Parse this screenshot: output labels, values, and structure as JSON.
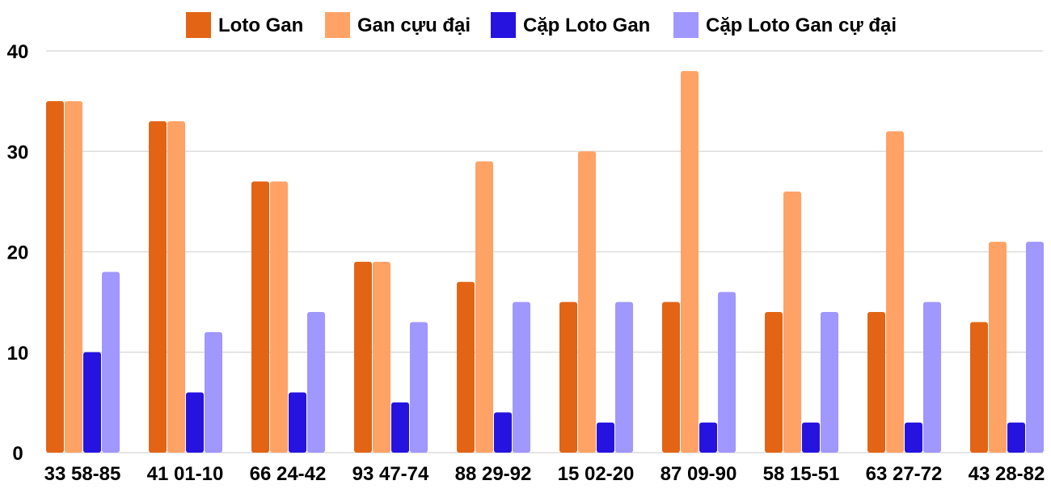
{
  "chart_data": {
    "type": "bar",
    "categories": [
      "33 58-85",
      "41 01-10",
      "66 24-42",
      "93 47-74",
      "88 29-92",
      "15 02-20",
      "87 09-90",
      "58 15-51",
      "63 27-72",
      "43 28-82"
    ],
    "series": [
      {
        "name": "Loto Gan",
        "color": "#e36414",
        "values": [
          35,
          33,
          27,
          19,
          17,
          15,
          15,
          14,
          14,
          13
        ]
      },
      {
        "name": "Gan cựu đại",
        "color": "#ffa266",
        "values": [
          35,
          33,
          27,
          19,
          29,
          30,
          38,
          26,
          32,
          21
        ]
      },
      {
        "name": "Cặp Loto Gan",
        "color": "#2613e0",
        "values": [
          10,
          6,
          6,
          5,
          4,
          3,
          3,
          3,
          3,
          3
        ]
      },
      {
        "name": "Cặp Loto Gan cự đại",
        "color": "#a097ff",
        "values": [
          18,
          12,
          14,
          13,
          15,
          15,
          16,
          14,
          15,
          21
        ]
      }
    ],
    "yticks": [
      0,
      10,
      20,
      30,
      40
    ],
    "ylim": [
      0,
      40
    ],
    "grid": true,
    "legend": "top"
  }
}
